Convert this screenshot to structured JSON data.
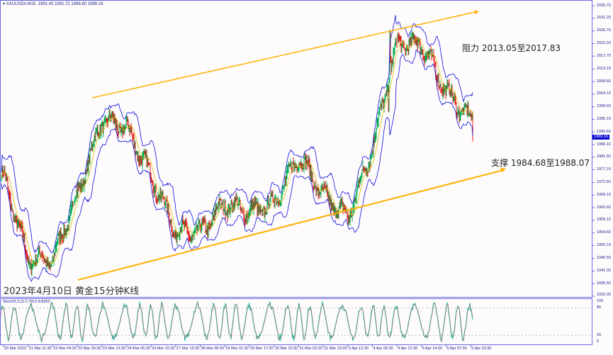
{
  "header": {
    "symbol": "XAUUSD#,M15",
    "ohlc": "1991.43 1991.72 1988.80 1989.16"
  },
  "title": "2023年4月10日 黄金15分钟K线",
  "annotations": {
    "resistance": "阻力 2013.05至2017.83",
    "support": "支撑 1984.68至1988.07"
  },
  "price_axis": [
    "2035.70",
    "2031.20",
    "2026.70",
    "2022.20",
    "2017.70",
    "2013.10",
    "2008.60",
    "2004.10",
    "1999.60",
    "1995.10",
    "1990.60",
    "1986.10",
    "1981.60",
    "1977.10",
    "1972.60",
    "1968.10",
    "1963.60",
    "1959.10",
    "1954.60",
    "1950.10",
    "1945.50",
    "1941.00",
    "1936.50",
    "1932.00"
  ],
  "current_price": "1989.16",
  "stoch": {
    "label": "Stoch(5,3,3) 2.7913 8.8252",
    "levels": [
      "100",
      "80",
      "20",
      "0"
    ]
  },
  "time_axis": [
    "20 Mar 2023",
    "21 Mar 11:30",
    "22 Mar 04:30",
    "22 Mar 20:30",
    "23 Mar 13:30",
    "24 Mar 06:30",
    "24 Mar 22:30",
    "27 Mar 15:30",
    "28 Mar 08:30",
    "29 Mar 01:30",
    "29 Mar 17:30",
    "30 Mar 10:30",
    "31 Mar 03:30",
    "31 Mar 19:30",
    "3 Apr 12:30",
    "4 Apr 05:30",
    "4 Apr 21:30",
    "5 Apr 14:30",
    "6 Apr 07:30",
    "6 Apr 23:30"
  ],
  "chart_data": {
    "type": "candlestick",
    "approx_price_at_time_labels": [
      1975,
      1945,
      1945,
      1968,
      1995,
      1992,
      1975,
      1955,
      1955,
      1965,
      1962,
      1965,
      1982,
      1968,
      1960,
      1985,
      2022,
      2022,
      2005,
      1995
    ],
    "last_close": 1989.16,
    "ylim": [
      1932.0,
      2035.7
    ],
    "trendlines": [
      {
        "name": "resistance",
        "from": 2002.8,
        "to": 2033.4
      },
      {
        "name": "support",
        "from": 1937.8,
        "to": 1977.0
      }
    ],
    "colors": {
      "up": "#00b050",
      "down": "#e02020",
      "bands": "#1010e0",
      "ma": "#e0c000",
      "trend": "#ffb000",
      "stoch_main": "#20c0b0",
      "stoch_signal": "#e03030"
    }
  }
}
